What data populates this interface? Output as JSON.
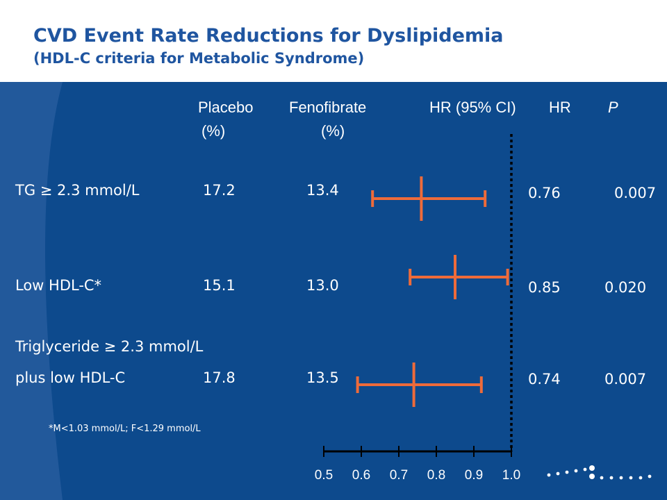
{
  "header": {
    "title": "CVD Event Rate Reductions for Dyslipidemia",
    "subtitle": "(HDL-C criteria for Metabolic Syndrome)"
  },
  "columns": {
    "placebo": "Placebo",
    "placebo_unit": "(%)",
    "fenofibrate": "Fenofibrate",
    "fenofibrate_unit": "(%)",
    "hr_ci": "HR (95% CI)",
    "hr": "HR",
    "p": "P"
  },
  "rows": [
    {
      "label": "TG ≥ 2.3 mmol/L",
      "placebo": "17.2",
      "fenofibrate": "13.4",
      "hr": "0.76",
      "p": "0.007"
    },
    {
      "label": "Low HDL-C*",
      "placebo": "15.1",
      "fenofibrate": "13.0",
      "hr": "0.85",
      "p": "0.020"
    },
    {
      "label_line1": "Triglyceride ≥ 2.3 mmol/L",
      "label": "plus low HDL-C",
      "placebo": "17.8",
      "fenofibrate": "13.5",
      "hr": "0.74",
      "p": "0.007"
    }
  ],
  "footnote": "*M<1.03 mmol/L; F<1.29 mmol/L",
  "chart_data": {
    "type": "forest",
    "title": "",
    "xlabel": "",
    "ylabel": "",
    "xlim": [
      0.5,
      1.0
    ],
    "reference_line": 1.0,
    "ticks": [
      0.5,
      0.6,
      0.7,
      0.8,
      0.9,
      1.0
    ],
    "tick_labels": [
      "0.5",
      "0.6",
      "0.7",
      "0.8",
      "0.9",
      "1.0"
    ],
    "series": [
      {
        "hr": 0.76,
        "ci_low": 0.63,
        "ci_high": 0.93
      },
      {
        "hr": 0.85,
        "ci_low": 0.73,
        "ci_high": 0.99
      },
      {
        "hr": 0.74,
        "ci_low": 0.59,
        "ci_high": 0.92
      }
    ],
    "colors": {
      "marker": "#ee6b3a",
      "reference": "#000000",
      "axis": "#000000"
    }
  }
}
